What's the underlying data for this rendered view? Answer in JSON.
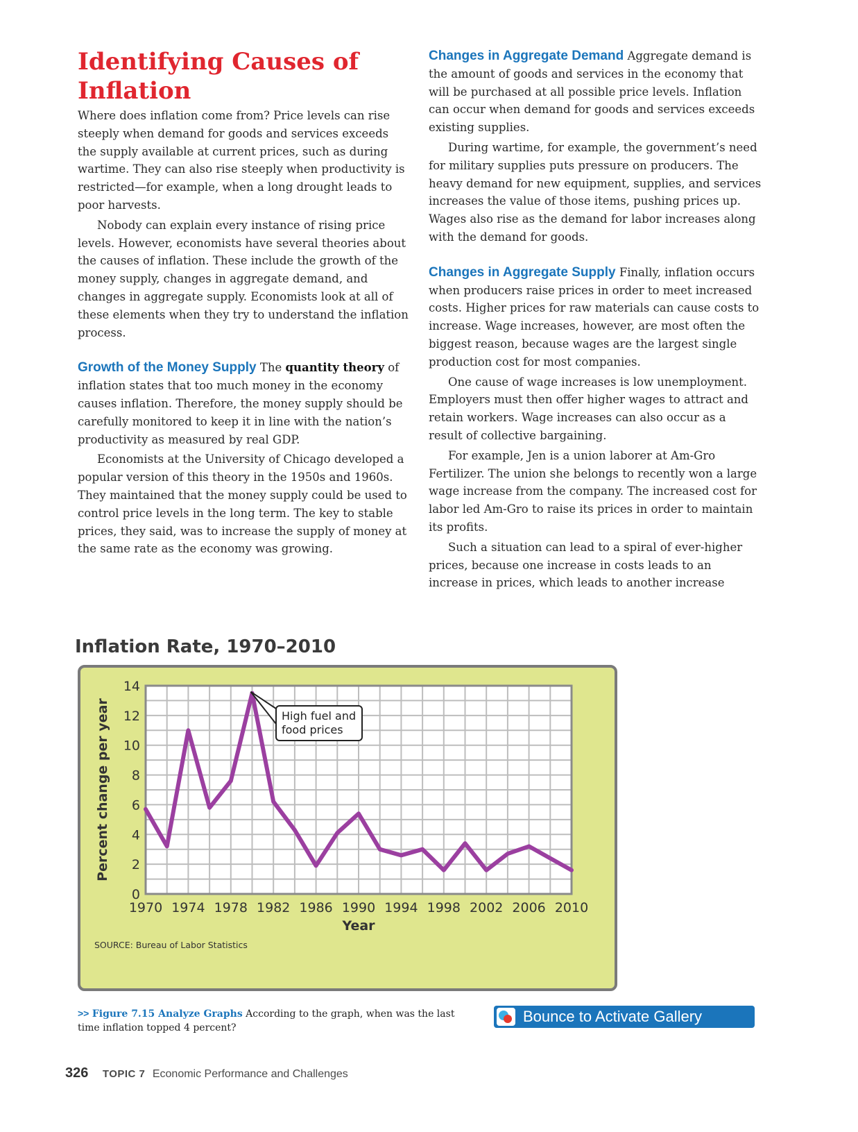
{
  "left_column": {
    "title": "Identifying Causes of Inflation",
    "intro_p1": "Where does inflation come from? Price levels can rise steeply when demand for goods and services exceeds the supply available at current prices, such as during wartime. They can also rise steeply when productivity is restricted—for example, when a long drought leads to poor harvests.",
    "intro_p2": "Nobody can explain every instance of rising price levels. However, economists have several theories about the causes of inflation. These include the growth of the money supply, changes in aggregate demand, and changes in aggregate supply. Economists look at all of these elements when they try to understand the inflation process.",
    "money_heading": "Growth of the Money Supply",
    "money_p1_start": "The",
    "money_p1_term": "quantity theory",
    "money_p1_rest": "of inflation states that too much money in the economy causes inflation. Therefore, the money supply should be carefully monitored to keep it in line with the nation’s productivity as measured by real GDP.",
    "money_p2": "Economists at the University of Chicago developed a popular version of this theory in the 1950s and 1960s. They maintained that the money supply could be used to control price levels in the long term. The key to stable prices, they said, was to increase the supply of money at the same rate as the economy was growing."
  },
  "right_column": {
    "demand_heading": "Changes in Aggregate Demand",
    "demand_p1": "Aggregate demand is the amount of goods and services in the economy that will be purchased at all possible price levels. Inflation can occur when demand for goods and services exceeds existing supplies.",
    "demand_p2": "During wartime, for example, the government’s need for military supplies puts pressure on producers. The heavy demand for new equipment, supplies, and services increases the value of those items, pushing prices up. Wages also rise as the demand for labor increases along with the demand for goods.",
    "supply_heading": "Changes in Aggregate Supply",
    "supply_p1": "Finally, inflation occurs when producers raise prices in order to meet increased costs. Higher prices for raw materials can cause costs to increase. Wage increases, however, are most often the biggest reason, because wages are the largest single production cost for most companies.",
    "supply_p2": "One cause of wage increases is low unemployment. Employers must then offer higher wages to attract and retain workers. Wage increases can also occur as a result of collective bargaining.",
    "supply_p3": "For example, Jen is a union laborer at Am-Gro Fertilizer. The union she belongs to recently won a large wage increase from the company. The increased cost for labor led Am-Gro to raise its prices in order to maintain its profits.",
    "supply_p4": "Such a situation can lead to a spiral of ever-higher prices, because one increase in costs leads to an increase in prices, which leads to another increase"
  },
  "chart_data": {
    "type": "line",
    "title": "Inflation Rate, 1970–2010",
    "xlabel": "Year",
    "ylabel": "Percent change per year",
    "xlim": [
      1970,
      2010
    ],
    "ylim": [
      0,
      14
    ],
    "x_ticks": [
      1970,
      1974,
      1978,
      1982,
      1986,
      1990,
      1994,
      1998,
      2002,
      2006,
      2010
    ],
    "y_ticks": [
      0,
      2,
      4,
      6,
      8,
      10,
      12,
      14
    ],
    "grid": true,
    "x": [
      1970,
      1972,
      1974,
      1976,
      1978,
      1980,
      1982,
      1984,
      1986,
      1988,
      1990,
      1992,
      1994,
      1996,
      1998,
      2000,
      2002,
      2004,
      2006,
      2008,
      2010
    ],
    "values": [
      5.7,
      3.2,
      11.0,
      5.8,
      7.6,
      13.5,
      6.2,
      4.3,
      1.9,
      4.1,
      5.4,
      3.0,
      2.6,
      3.0,
      1.6,
      3.4,
      1.6,
      2.7,
      3.2,
      2.4,
      1.6
    ],
    "line_color": "#9b3fa0",
    "annotation": {
      "text_line1": "High fuel and",
      "text_line2": "food prices",
      "x": 1980,
      "y": 13.5
    },
    "source": "SOURCE: Bureau of Labor Statistics"
  },
  "caption": {
    "arrow": ">>",
    "figure_label": "Figure 7.15 Analyze Graphs",
    "text": "According to the graph, when was the last time inflation topped 4 percent?"
  },
  "bounce": {
    "label": "Bounce to Activate Gallery",
    "icon": "bounce-logo-icon"
  },
  "footer": {
    "page_number": "326",
    "topic": "TOPIC 7",
    "topic_title": "Economic Performance and Challenges"
  }
}
